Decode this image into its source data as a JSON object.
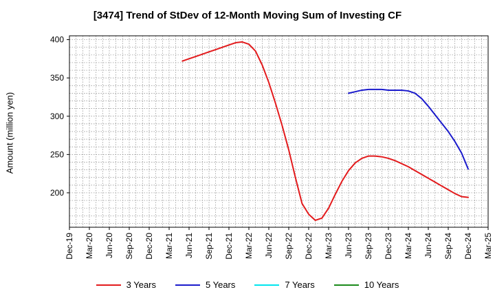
{
  "chart_data": {
    "type": "line",
    "title": "[3474]  Trend of StDev of 12-Month Moving Sum of Investing CF",
    "ylabel": "Amount (million yen)",
    "xlabel": "",
    "ylim": [
      155,
      405
    ],
    "yticks": [
      200,
      250,
      300,
      350,
      400
    ],
    "grid": true,
    "legend_position": "bottom",
    "x_tick_labels": [
      "Dec-19",
      "Mar-20",
      "Jun-20",
      "Sep-20",
      "Dec-20",
      "Mar-21",
      "Jun-21",
      "Sep-21",
      "Dec-21",
      "Mar-22",
      "Jun-22",
      "Sep-22",
      "Dec-22",
      "Mar-23",
      "Jun-23",
      "Sep-23",
      "Dec-23",
      "Mar-24",
      "Jun-24",
      "Sep-24",
      "Dec-24",
      "Mar-25"
    ],
    "series": [
      {
        "name": "3 Years",
        "color": "#e31a1c",
        "x": [
          "May-21",
          "Jun-21",
          "Jul-21",
          "Aug-21",
          "Sep-21",
          "Oct-21",
          "Nov-21",
          "Dec-21",
          "Jan-22",
          "Feb-22",
          "Mar-22",
          "Apr-22",
          "May-22",
          "Jun-22",
          "Jul-22",
          "Aug-22",
          "Sep-22",
          "Oct-22",
          "Nov-22",
          "Dec-22",
          "Jan-23",
          "Feb-23",
          "Mar-23",
          "Apr-23",
          "May-23",
          "Jun-23",
          "Jul-23",
          "Aug-23",
          "Sep-23",
          "Oct-23",
          "Nov-23",
          "Dec-23",
          "Jan-24",
          "Feb-24",
          "Mar-24",
          "Apr-24",
          "May-24",
          "Jun-24",
          "Jul-24",
          "Aug-24",
          "Sep-24",
          "Oct-24",
          "Nov-24",
          "Dec-24"
        ],
        "values": [
          372,
          375,
          378,
          381,
          384,
          387,
          390,
          393,
          396,
          397,
          394,
          385,
          367,
          344,
          317,
          288,
          256,
          220,
          186,
          172,
          164,
          167,
          180,
          198,
          215,
          229,
          239,
          245,
          248,
          248,
          247,
          245,
          242,
          238,
          234,
          229,
          224,
          219,
          214,
          209,
          204,
          199,
          195,
          194
        ]
      },
      {
        "name": "5 Years",
        "color": "#1a1acc",
        "x": [
          "Jun-23",
          "Jul-23",
          "Aug-23",
          "Sep-23",
          "Oct-23",
          "Nov-23",
          "Dec-23",
          "Jan-24",
          "Feb-24",
          "Mar-24",
          "Apr-24",
          "May-24",
          "Jun-24",
          "Jul-24",
          "Aug-24",
          "Sep-24",
          "Oct-24",
          "Nov-24",
          "Dec-24"
        ],
        "values": [
          330,
          332,
          334,
          335,
          335,
          335,
          334,
          334,
          334,
          333,
          330,
          323,
          313,
          302,
          291,
          280,
          267,
          252,
          231
        ]
      },
      {
        "name": "7 Years",
        "color": "#00e5ee",
        "x": [],
        "values": []
      },
      {
        "name": "10 Years",
        "color": "#1a8a1a",
        "x": [],
        "values": []
      }
    ]
  }
}
